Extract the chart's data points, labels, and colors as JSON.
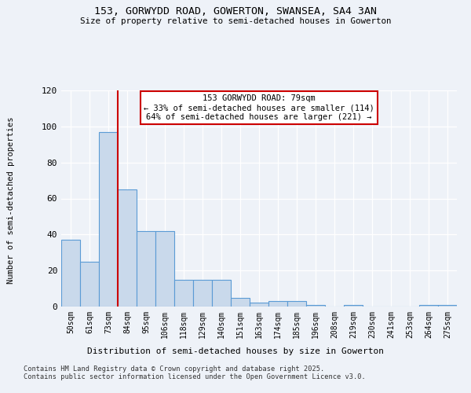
{
  "title1": "153, GORWYDD ROAD, GOWERTON, SWANSEA, SA4 3AN",
  "title2": "Size of property relative to semi-detached houses in Gowerton",
  "xlabel": "Distribution of semi-detached houses by size in Gowerton",
  "ylabel": "Number of semi-detached properties",
  "categories": [
    "50sqm",
    "61sqm",
    "73sqm",
    "84sqm",
    "95sqm",
    "106sqm",
    "118sqm",
    "129sqm",
    "140sqm",
    "151sqm",
    "163sqm",
    "174sqm",
    "185sqm",
    "196sqm",
    "208sqm",
    "219sqm",
    "230sqm",
    "241sqm",
    "253sqm",
    "264sqm",
    "275sqm"
  ],
  "values": [
    37,
    25,
    97,
    65,
    42,
    42,
    15,
    15,
    15,
    5,
    2,
    3,
    3,
    1,
    0,
    1,
    0,
    0,
    0,
    1,
    1
  ],
  "bar_color": "#c9d9eb",
  "bar_edge_color": "#5b9bd5",
  "property_line_x": 2.5,
  "annotation_box_text": "153 GORWYDD ROAD: 79sqm\n← 33% of semi-detached houses are smaller (114)\n64% of semi-detached houses are larger (221) →",
  "annotation_box_color": "#ffffff",
  "annotation_box_edge_color": "#cc0000",
  "property_line_color": "#cc0000",
  "footer_text": "Contains HM Land Registry data © Crown copyright and database right 2025.\nContains public sector information licensed under the Open Government Licence v3.0.",
  "background_color": "#eef2f8",
  "ylim": [
    0,
    120
  ],
  "yticks": [
    0,
    20,
    40,
    60,
    80,
    100,
    120
  ]
}
